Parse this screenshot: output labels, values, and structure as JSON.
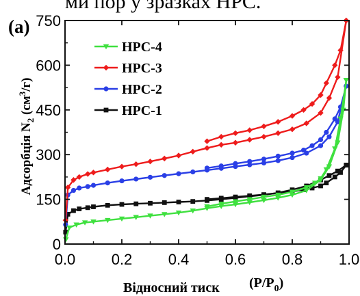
{
  "page": {
    "caption_fragment": "ми пор у зразках HPC."
  },
  "chart_data": {
    "type": "line",
    "panel_label": "(a)",
    "xlabel": "Відносний тиск",
    "xlabel_unit": "(P/P0)",
    "ylabel": "Адсорбція N2 (см3/г)",
    "xlim": [
      0.0,
      1.0
    ],
    "ylim": [
      0,
      750
    ],
    "xticks": [
      "0.0",
      "0.2",
      "0.4",
      "0.6",
      "0.8",
      "1.0"
    ],
    "yticks": [
      "0",
      "150",
      "300",
      "450",
      "600",
      "750"
    ],
    "xtick_values": [
      0.0,
      0.2,
      0.4,
      0.6,
      0.8,
      1.0
    ],
    "ytick_values": [
      0,
      150,
      300,
      450,
      600,
      750
    ],
    "grid": false,
    "legend_position": "top-left",
    "series": [
      {
        "name": "HPC-4",
        "color": "#3fe03f",
        "marker": "triangle-down",
        "adsorption": {
          "x": [
            0.003,
            0.015,
            0.04,
            0.07,
            0.1,
            0.15,
            0.2,
            0.25,
            0.3,
            0.35,
            0.4,
            0.45,
            0.5,
            0.55,
            0.6,
            0.65,
            0.7,
            0.75,
            0.8,
            0.85,
            0.9,
            0.93,
            0.96,
            0.98,
            0.99
          ],
          "y": [
            15,
            55,
            65,
            72,
            75,
            80,
            85,
            90,
            95,
            100,
            105,
            112,
            120,
            127,
            133,
            140,
            147,
            155,
            165,
            180,
            215,
            260,
            340,
            450,
            550
          ]
        },
        "desorption": {
          "x": [
            0.99,
            0.97,
            0.95,
            0.92,
            0.9,
            0.88,
            0.85,
            0.8,
            0.75,
            0.7,
            0.65,
            0.6,
            0.55,
            0.5
          ],
          "y": [
            550,
            420,
            320,
            250,
            220,
            205,
            190,
            175,
            165,
            158,
            150,
            143,
            135,
            126
          ]
        }
      },
      {
        "name": "HPC-3",
        "color": "#ee1c1c",
        "marker": "diamond",
        "adsorption": {
          "x": [
            0.002,
            0.01,
            0.03,
            0.05,
            0.08,
            0.1,
            0.15,
            0.2,
            0.25,
            0.3,
            0.35,
            0.4,
            0.45,
            0.5,
            0.55,
            0.6,
            0.65,
            0.7,
            0.75,
            0.8,
            0.85,
            0.9,
            0.93,
            0.96,
            0.99
          ],
          "y": [
            80,
            190,
            215,
            225,
            235,
            240,
            250,
            260,
            268,
            277,
            287,
            297,
            310,
            322,
            333,
            340,
            350,
            360,
            372,
            385,
            405,
            440,
            490,
            560,
            750
          ]
        },
        "desorption": {
          "x": [
            0.99,
            0.97,
            0.95,
            0.92,
            0.9,
            0.87,
            0.84,
            0.8,
            0.75,
            0.7,
            0.65,
            0.6,
            0.55,
            0.5
          ],
          "y": [
            750,
            650,
            600,
            540,
            500,
            470,
            450,
            430,
            410,
            395,
            382,
            372,
            360,
            345
          ]
        }
      },
      {
        "name": "HPC-2",
        "color": "#2a3fe6",
        "marker": "circle",
        "adsorption": {
          "x": [
            0.002,
            0.01,
            0.03,
            0.05,
            0.08,
            0.1,
            0.15,
            0.2,
            0.25,
            0.3,
            0.35,
            0.4,
            0.45,
            0.5,
            0.55,
            0.6,
            0.65,
            0.7,
            0.75,
            0.8,
            0.85,
            0.9,
            0.93,
            0.96,
            0.99
          ],
          "y": [
            65,
            165,
            180,
            188,
            193,
            197,
            205,
            212,
            218,
            224,
            230,
            236,
            242,
            248,
            254,
            260,
            266,
            272,
            280,
            290,
            305,
            330,
            360,
            410,
            530
          ]
        },
        "desorption": {
          "x": [
            0.99,
            0.97,
            0.95,
            0.92,
            0.9,
            0.87,
            0.84,
            0.8,
            0.75,
            0.7,
            0.65,
            0.6,
            0.55,
            0.5
          ],
          "y": [
            530,
            460,
            420,
            375,
            350,
            330,
            315,
            305,
            295,
            285,
            277,
            270,
            262,
            255
          ]
        }
      },
      {
        "name": "HPC-1",
        "color": "#111111",
        "marker": "square",
        "adsorption": {
          "x": [
            0.002,
            0.01,
            0.03,
            0.05,
            0.08,
            0.1,
            0.15,
            0.2,
            0.25,
            0.3,
            0.35,
            0.4,
            0.45,
            0.5,
            0.55,
            0.6,
            0.65,
            0.7,
            0.75,
            0.8,
            0.85,
            0.9,
            0.93,
            0.96,
            0.99
          ],
          "y": [
            40,
            100,
            112,
            118,
            122,
            125,
            130,
            133,
            135,
            137,
            139,
            141,
            143,
            146,
            150,
            155,
            160,
            165,
            172,
            182,
            195,
            215,
            230,
            245,
            265
          ]
        },
        "desorption": {
          "x": [
            0.99,
            0.97,
            0.95,
            0.92,
            0.9,
            0.87,
            0.84,
            0.8,
            0.75,
            0.7,
            0.65,
            0.6,
            0.55,
            0.5
          ],
          "y": [
            265,
            240,
            225,
            205,
            195,
            188,
            182,
            176,
            171,
            166,
            162,
            158,
            154,
            150
          ]
        }
      }
    ]
  }
}
